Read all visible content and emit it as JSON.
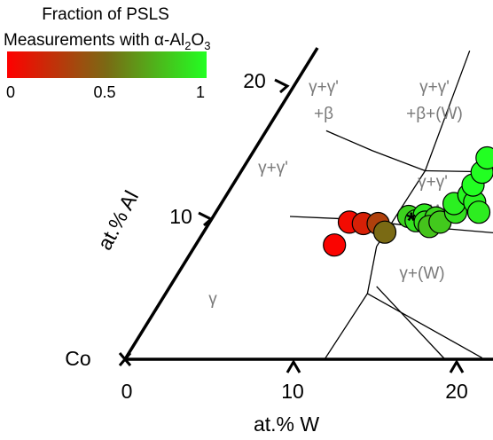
{
  "colorbar": {
    "title_line1": "Fraction of PSLS",
    "title_line2_prefix": "Measurements with ",
    "title_line2_alpha": "α",
    "title_line2_al": "-Al",
    "title_line2_sub2": "2",
    "title_line2_o": "O",
    "title_line2_sub3": "3",
    "tick_labels": [
      "0",
      "0.5",
      "1"
    ],
    "tick_values": [
      0,
      0.5,
      1
    ],
    "colors": [
      "#ff0000",
      "#7a6a14",
      "#22ff22"
    ]
  },
  "axes": {
    "corner_label": "Co",
    "x_title": "at.% W",
    "y_title": "at.% Al",
    "x_ticks": [
      "0",
      "10",
      "20"
    ],
    "y_ticks": [
      "10",
      "20"
    ]
  },
  "phase_labels": {
    "top_left_1": "γ+γ'",
    "top_left_2": "+β",
    "top_right_1": "γ+γ'",
    "top_right_2": "+β+(W)",
    "mid_left": "γ+γ'",
    "mid_right_1": "γ+γ'",
    "mid_right_2": "+(W)",
    "low_right": "γ+(W)",
    "gamma": "γ"
  },
  "star": "*",
  "chart_data": {
    "type": "scatter",
    "title": "",
    "xlabel": "at.% W",
    "ylabel": "at.% Al",
    "xlim": [
      0,
      22
    ],
    "ylim": [
      0,
      22
    ],
    "grid": false,
    "colorbar_label": "Fraction of PSLS Measurements with α-Al2O3",
    "colorbar_range": [
      0,
      1
    ],
    "star_point": {
      "w": 12.4,
      "al": 9.9
    },
    "points": [
      {
        "w": 8.7,
        "al": 8.0,
        "fraction": 0.02
      },
      {
        "w": 8.8,
        "al": 9.6,
        "fraction": 0.05
      },
      {
        "w": 9.7,
        "al": 9.5,
        "fraction": 0.15
      },
      {
        "w": 10.6,
        "al": 9.5,
        "fraction": 0.3
      },
      {
        "w": 11.3,
        "al": 8.9,
        "fraction": 0.5
      },
      {
        "w": 12.2,
        "al": 10.0,
        "fraction": 0.85
      },
      {
        "w": 12.8,
        "al": 9.7,
        "fraction": 0.9
      },
      {
        "w": 13.1,
        "al": 10.1,
        "fraction": 0.92
      },
      {
        "w": 13.4,
        "al": 9.6,
        "fraction": 0.88
      },
      {
        "w": 13.9,
        "al": 9.9,
        "fraction": 0.86
      },
      {
        "w": 13.8,
        "al": 9.3,
        "fraction": 0.8
      },
      {
        "w": 14.3,
        "al": 9.6,
        "fraction": 0.82
      },
      {
        "w": 14.9,
        "al": 10.3,
        "fraction": 0.9
      },
      {
        "w": 14.5,
        "al": 10.9,
        "fraction": 0.95
      },
      {
        "w": 15.1,
        "al": 11.5,
        "fraction": 0.97
      },
      {
        "w": 15.7,
        "al": 11.0,
        "fraction": 0.96
      },
      {
        "w": 16.3,
        "al": 10.3,
        "fraction": 0.94
      },
      {
        "w": 15.0,
        "al": 12.2,
        "fraction": 1.0
      },
      {
        "w": 15.1,
        "al": 13.1,
        "fraction": 1.0
      },
      {
        "w": 14.9,
        "al": 14.1,
        "fraction": 1.0
      }
    ],
    "phase_boundaries": [
      [
        [
          4.2,
          16.0
        ],
        [
          7.7,
          14.6
        ],
        [
          11.6,
          13.2
        ]
      ],
      [
        [
          11.6,
          13.2
        ],
        [
          10.1,
          21.6
        ]
      ],
      [
        [
          11.6,
          13.2
        ],
        [
          21.6,
          13.0
        ]
      ],
      [
        [
          11.6,
          13.2
        ],
        [
          11.3,
          7.9
        ]
      ],
      [
        [
          5.0,
          10.0
        ],
        [
          9.0,
          9.8
        ],
        [
          12.2,
          9.4
        ]
      ],
      [
        [
          12.2,
          9.4
        ],
        [
          21.6,
          8.5
        ]
      ],
      [
        [
          11.3,
          7.9
        ],
        [
          12.4,
          4.6
        ],
        [
          12.1,
          0
        ]
      ],
      [
        [
          12.4,
          4.6
        ],
        [
          21.6,
          0.1
        ]
      ],
      [
        [
          12.7,
          5.1
        ],
        [
          19.4,
          0
        ]
      ]
    ]
  }
}
